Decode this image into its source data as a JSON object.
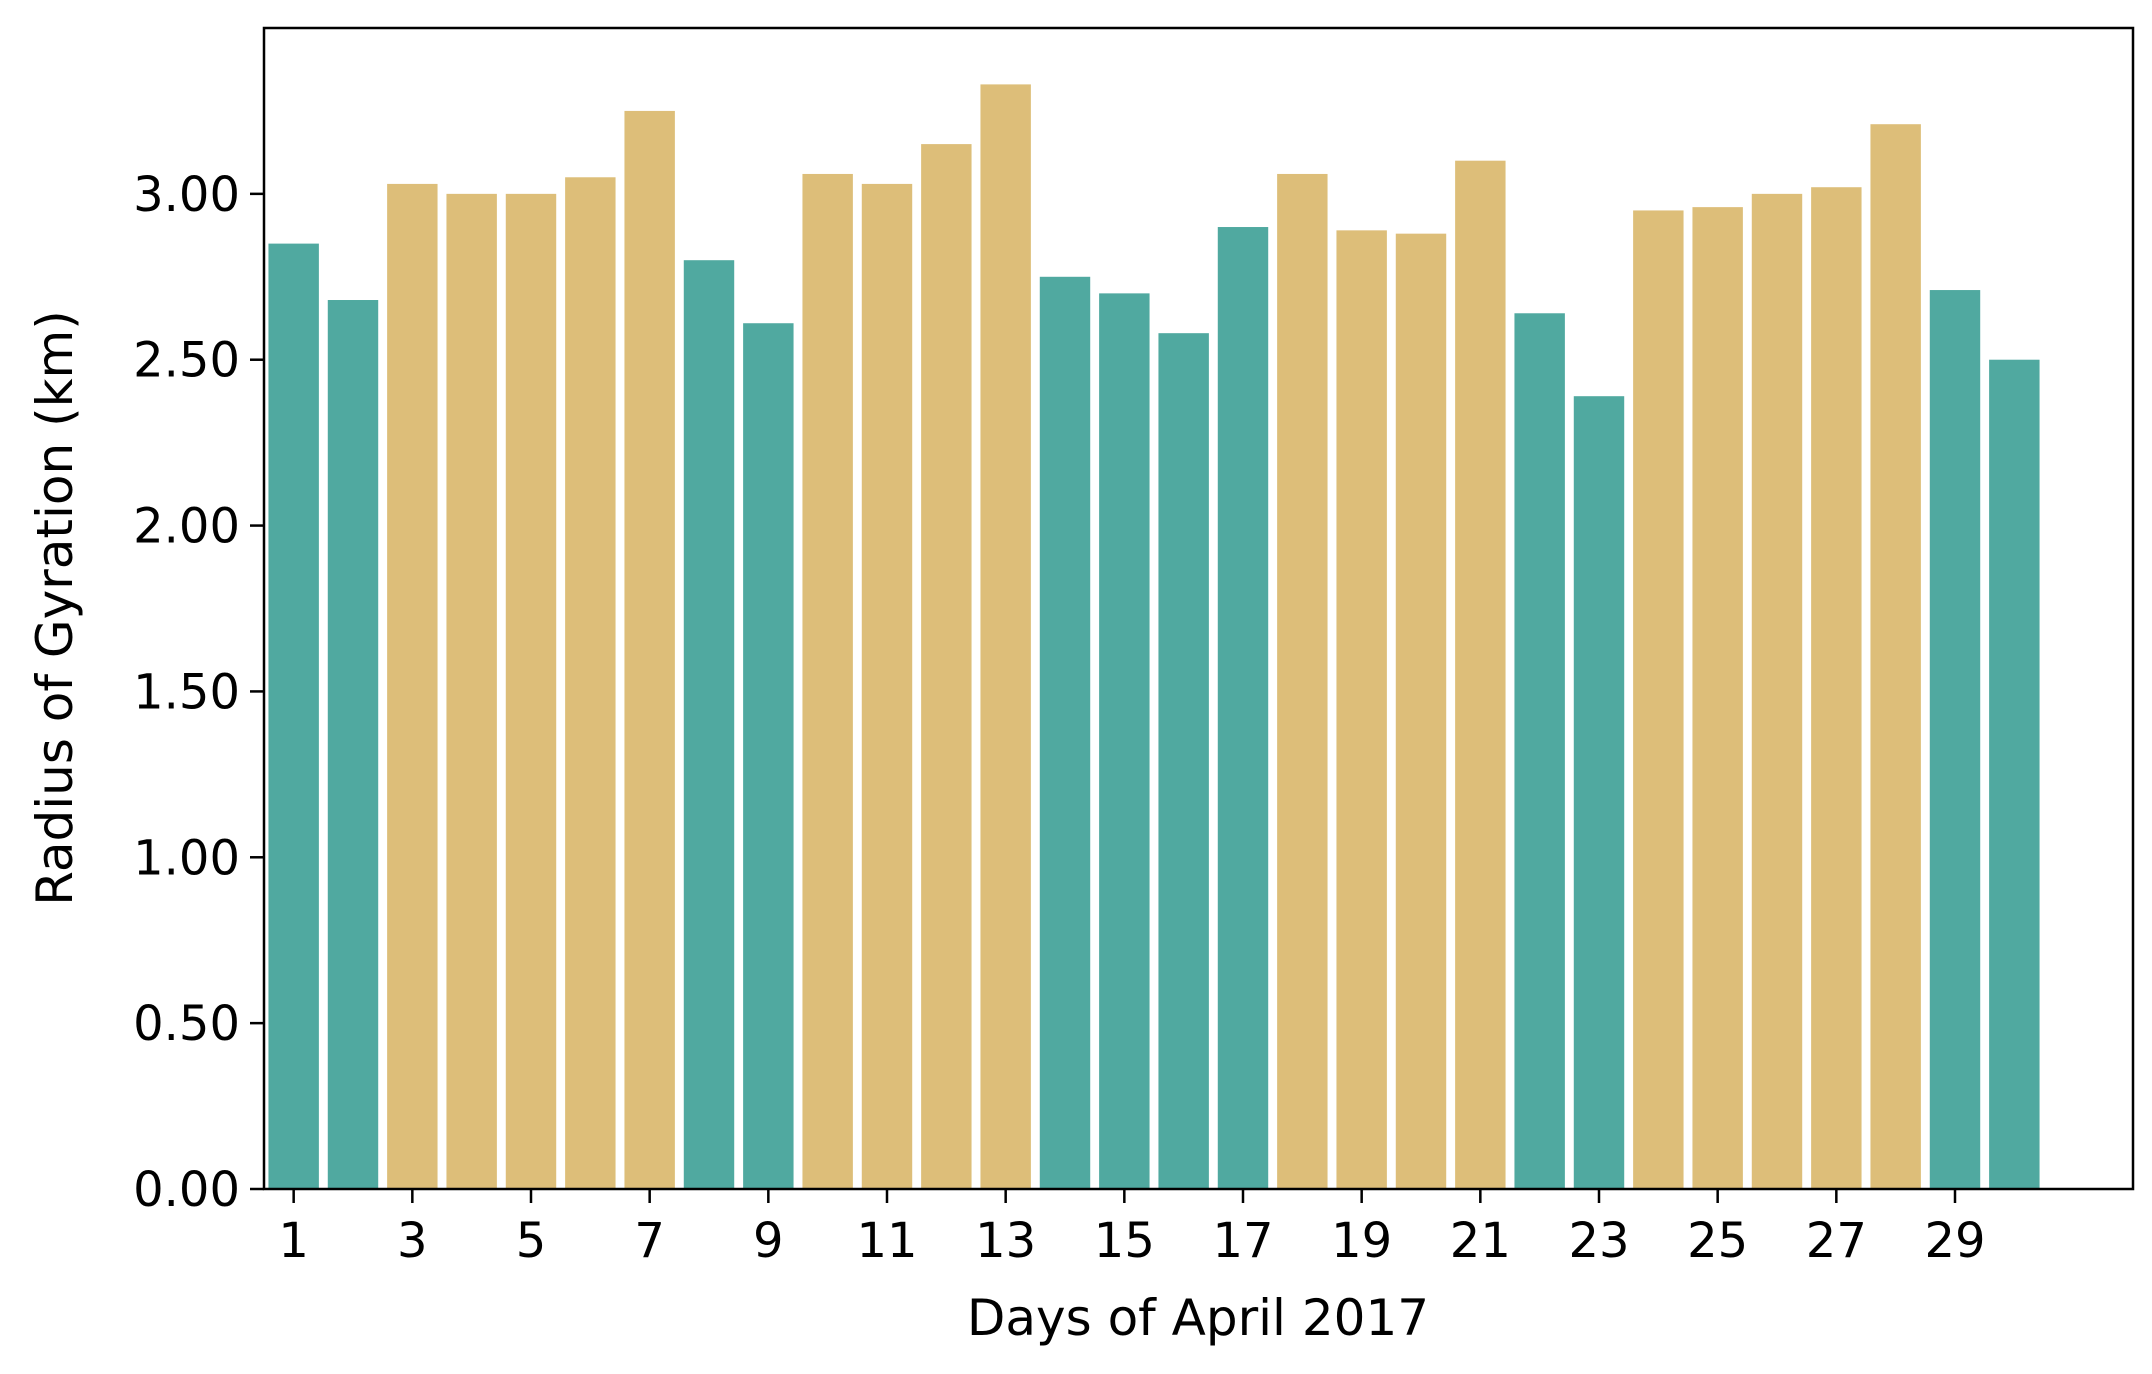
{
  "chart_data": {
    "type": "bar",
    "xlabel": "Days of April 2017",
    "ylabel": "Radius of Gyration (km)",
    "categories": [
      1,
      2,
      3,
      4,
      5,
      6,
      7,
      8,
      9,
      10,
      11,
      12,
      13,
      14,
      15,
      16,
      17,
      18,
      19,
      20,
      21,
      22,
      23,
      24,
      25,
      26,
      27,
      28,
      29,
      30
    ],
    "x_tick_labels": [
      "1",
      "3",
      "5",
      "7",
      "9",
      "11",
      "13",
      "15",
      "17",
      "19",
      "21",
      "23",
      "25",
      "27",
      "29"
    ],
    "y_tick_labels": [
      "0.00",
      "0.50",
      "1.00",
      "1.50",
      "2.00",
      "2.50",
      "3.00"
    ],
    "y_ticks": [
      0,
      0.5,
      1.0,
      1.5,
      2.0,
      2.5,
      3.0
    ],
    "ylim": [
      0,
      3.5
    ],
    "xlim": [
      -0.5,
      31
    ],
    "values": [
      2.85,
      2.68,
      3.03,
      3.0,
      3.0,
      3.05,
      3.25,
      2.8,
      2.61,
      3.06,
      3.03,
      3.15,
      3.33,
      2.75,
      2.7,
      2.58,
      2.9,
      3.06,
      2.89,
      2.88,
      3.1,
      2.64,
      2.39,
      2.95,
      2.96,
      3.0,
      3.02,
      3.21,
      2.71,
      2.5
    ],
    "bar_groups": [
      "teal",
      "teal",
      "gold",
      "gold",
      "gold",
      "gold",
      "gold",
      "teal",
      "teal",
      "gold",
      "gold",
      "gold",
      "gold",
      "teal",
      "teal",
      "teal",
      "teal",
      "gold",
      "gold",
      "gold",
      "gold",
      "teal",
      "teal",
      "gold",
      "gold",
      "gold",
      "gold",
      "gold",
      "teal",
      "teal"
    ],
    "colors": {
      "teal": "#50A9A0",
      "gold": "#DDBE79"
    },
    "grid": false,
    "legend": "none"
  }
}
